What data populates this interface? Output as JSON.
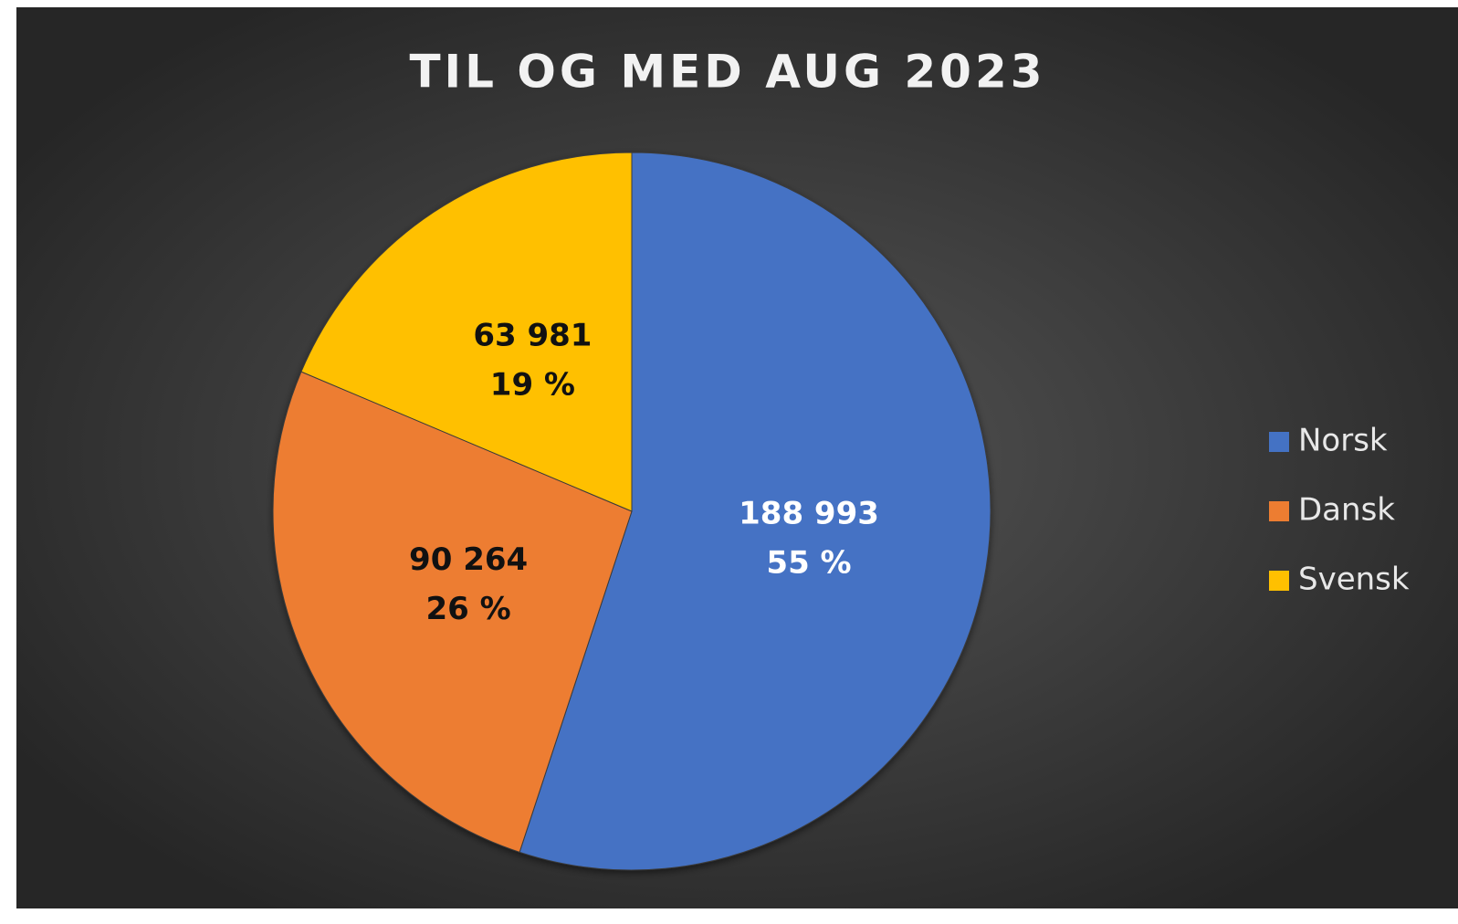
{
  "chart_data": {
    "type": "pie",
    "title": "TIL OG MED AUG 2023",
    "categories": [
      "Norsk",
      "Dansk",
      "Svensk"
    ],
    "values": [
      188993,
      90264,
      63981
    ],
    "value_labels": [
      "188 993",
      "90 264",
      "63 981"
    ],
    "percentages": [
      55,
      26,
      19
    ],
    "percentage_labels": [
      "55 %",
      "26 %",
      "19 %"
    ],
    "colors": [
      "#4472c4",
      "#ed7d31",
      "#ffc000"
    ],
    "legend": "right"
  }
}
